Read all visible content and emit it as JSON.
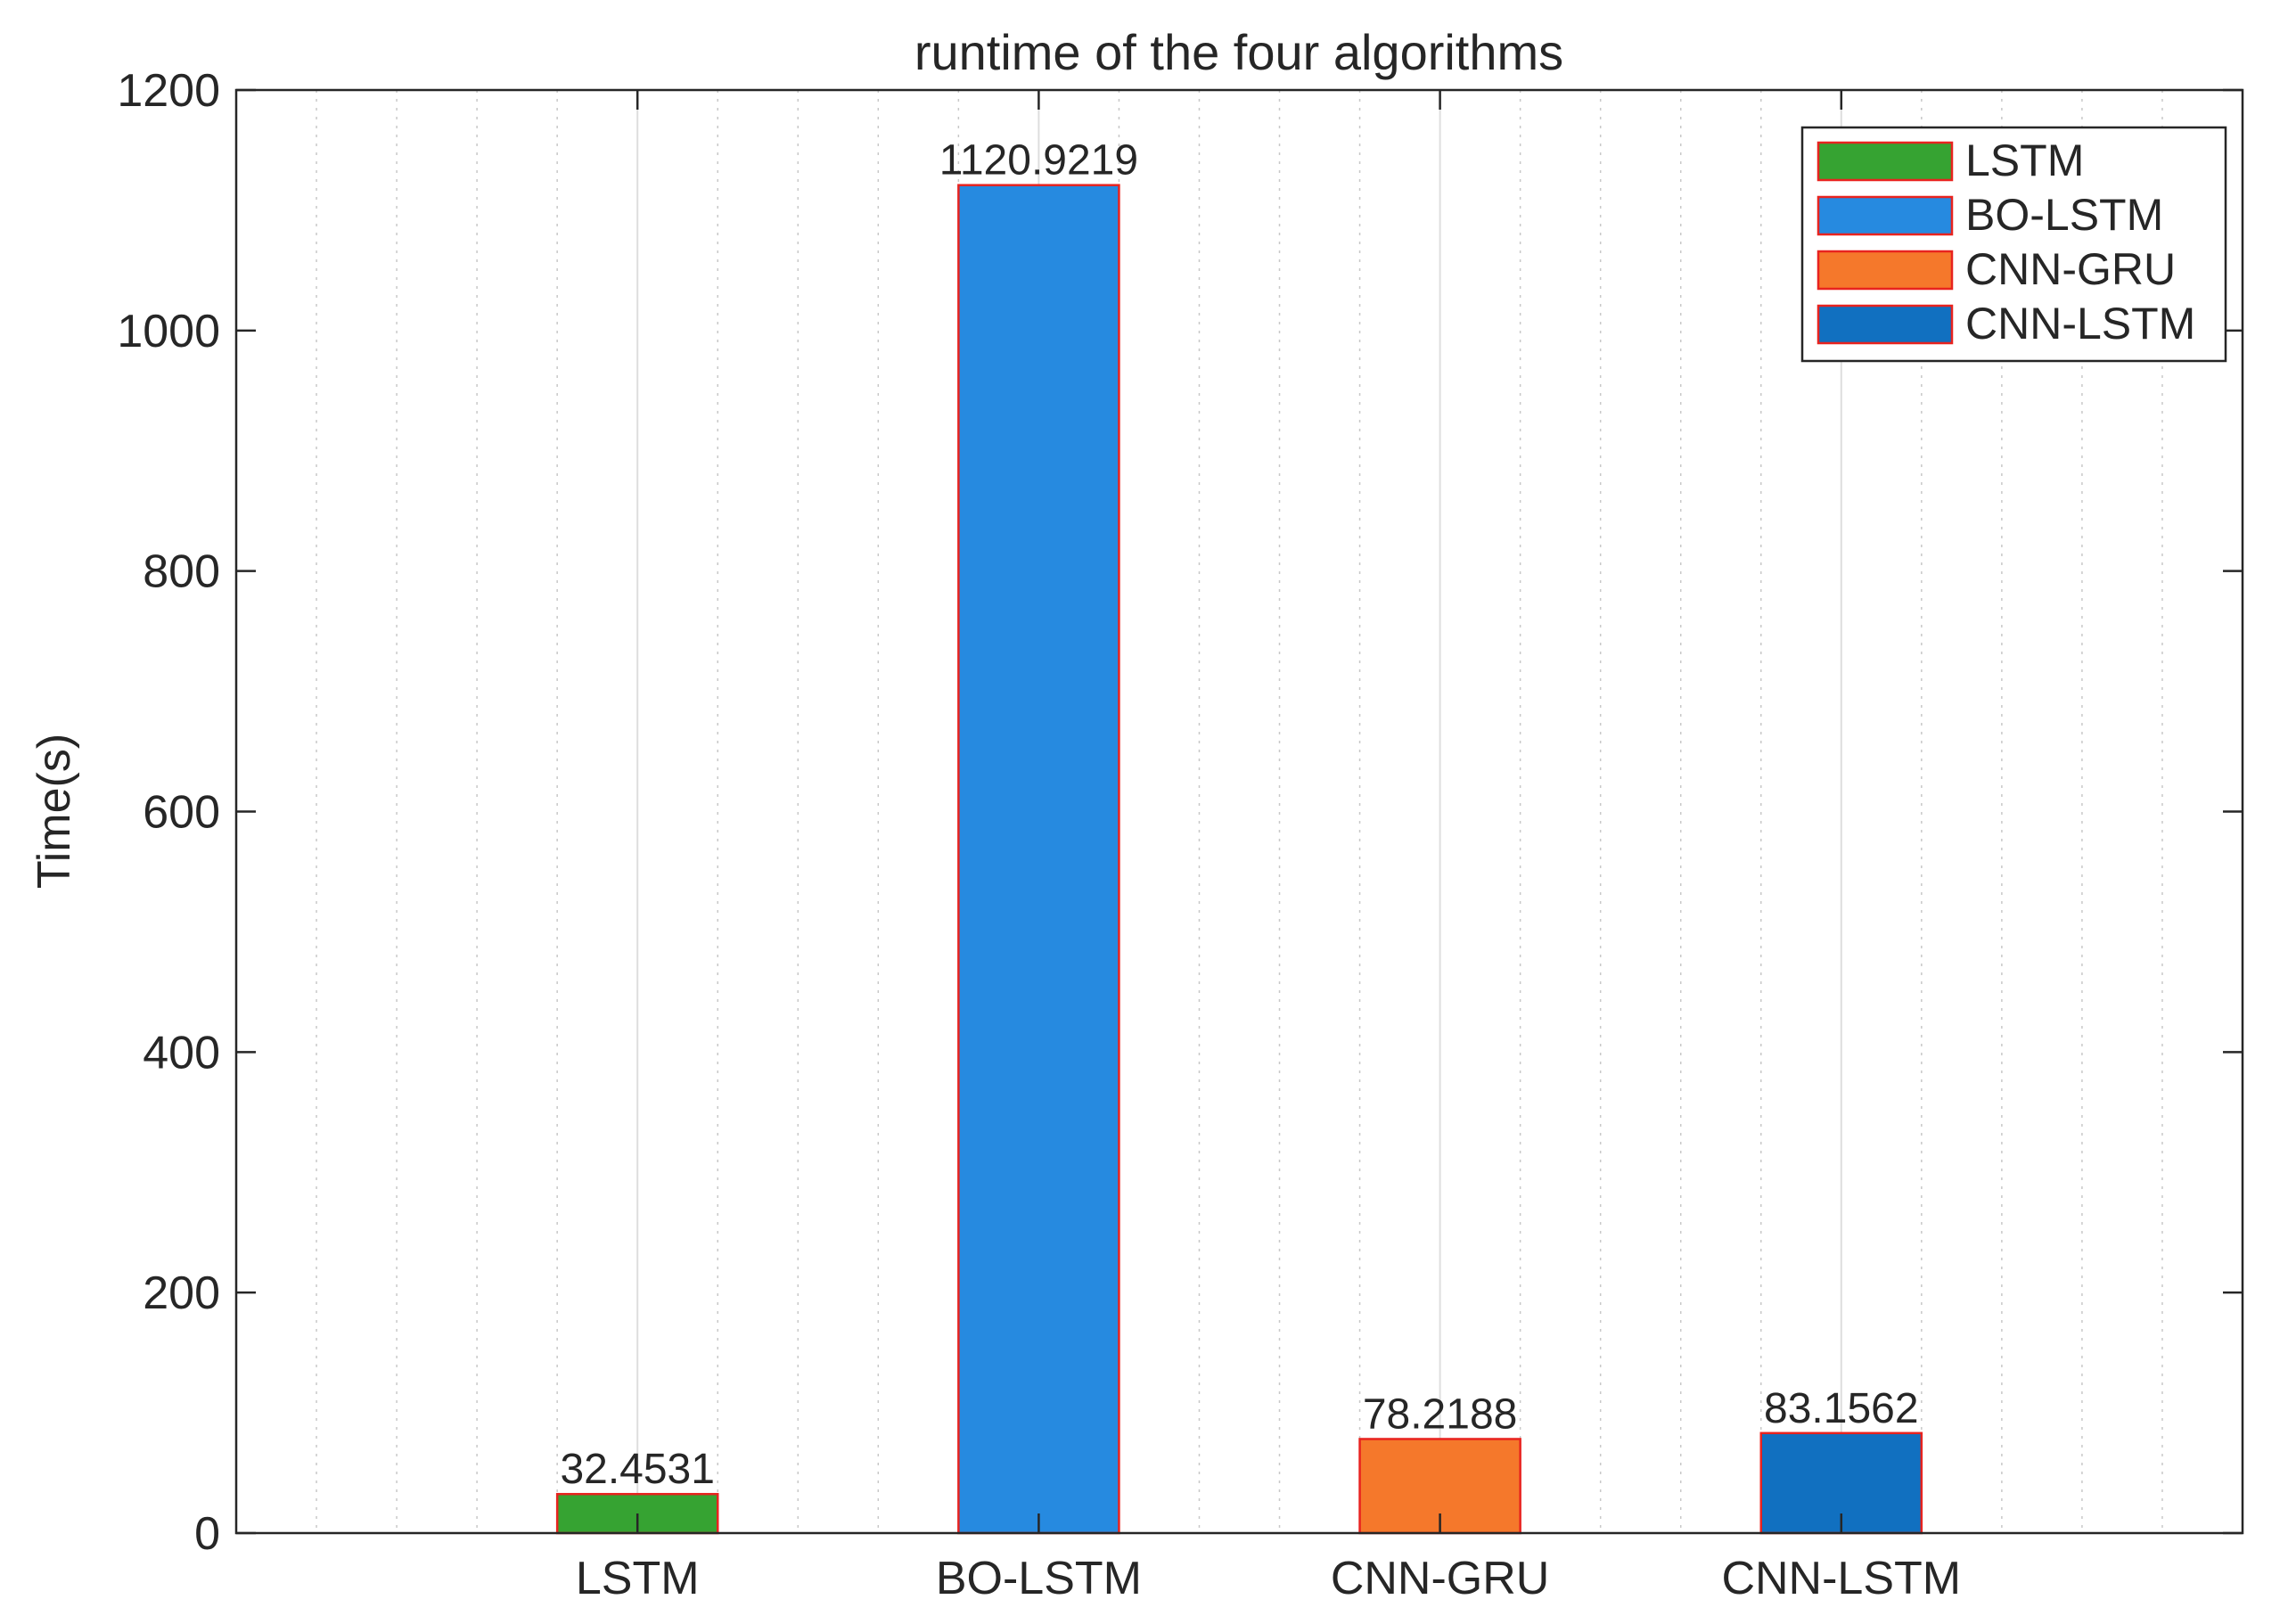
{
  "chart_data": {
    "type": "bar",
    "title": "runtime of the four algorithms",
    "xlabel": "",
    "ylabel": "Time(s)",
    "categories": [
      "LSTM",
      "BO-LSTM",
      "CNN-GRU",
      "CNN-LSTM"
    ],
    "values": [
      32.4531,
      1120.9219,
      78.2188,
      83.1562
    ],
    "data_labels": [
      "32.4531",
      "1120.9219",
      "78.2188",
      "83.1562"
    ],
    "colors": [
      "#36a332",
      "#268ae0",
      "#f5782b",
      "#1170c0"
    ],
    "edge_color": "#e8231f",
    "ylim": [
      0,
      1200
    ],
    "yticks": [
      0,
      200,
      400,
      600,
      800,
      1000,
      1200
    ],
    "grid": true,
    "legend": {
      "position": "top-right",
      "entries": [
        "LSTM",
        "BO-LSTM",
        "CNN-GRU",
        "CNN-LSTM"
      ]
    }
  }
}
